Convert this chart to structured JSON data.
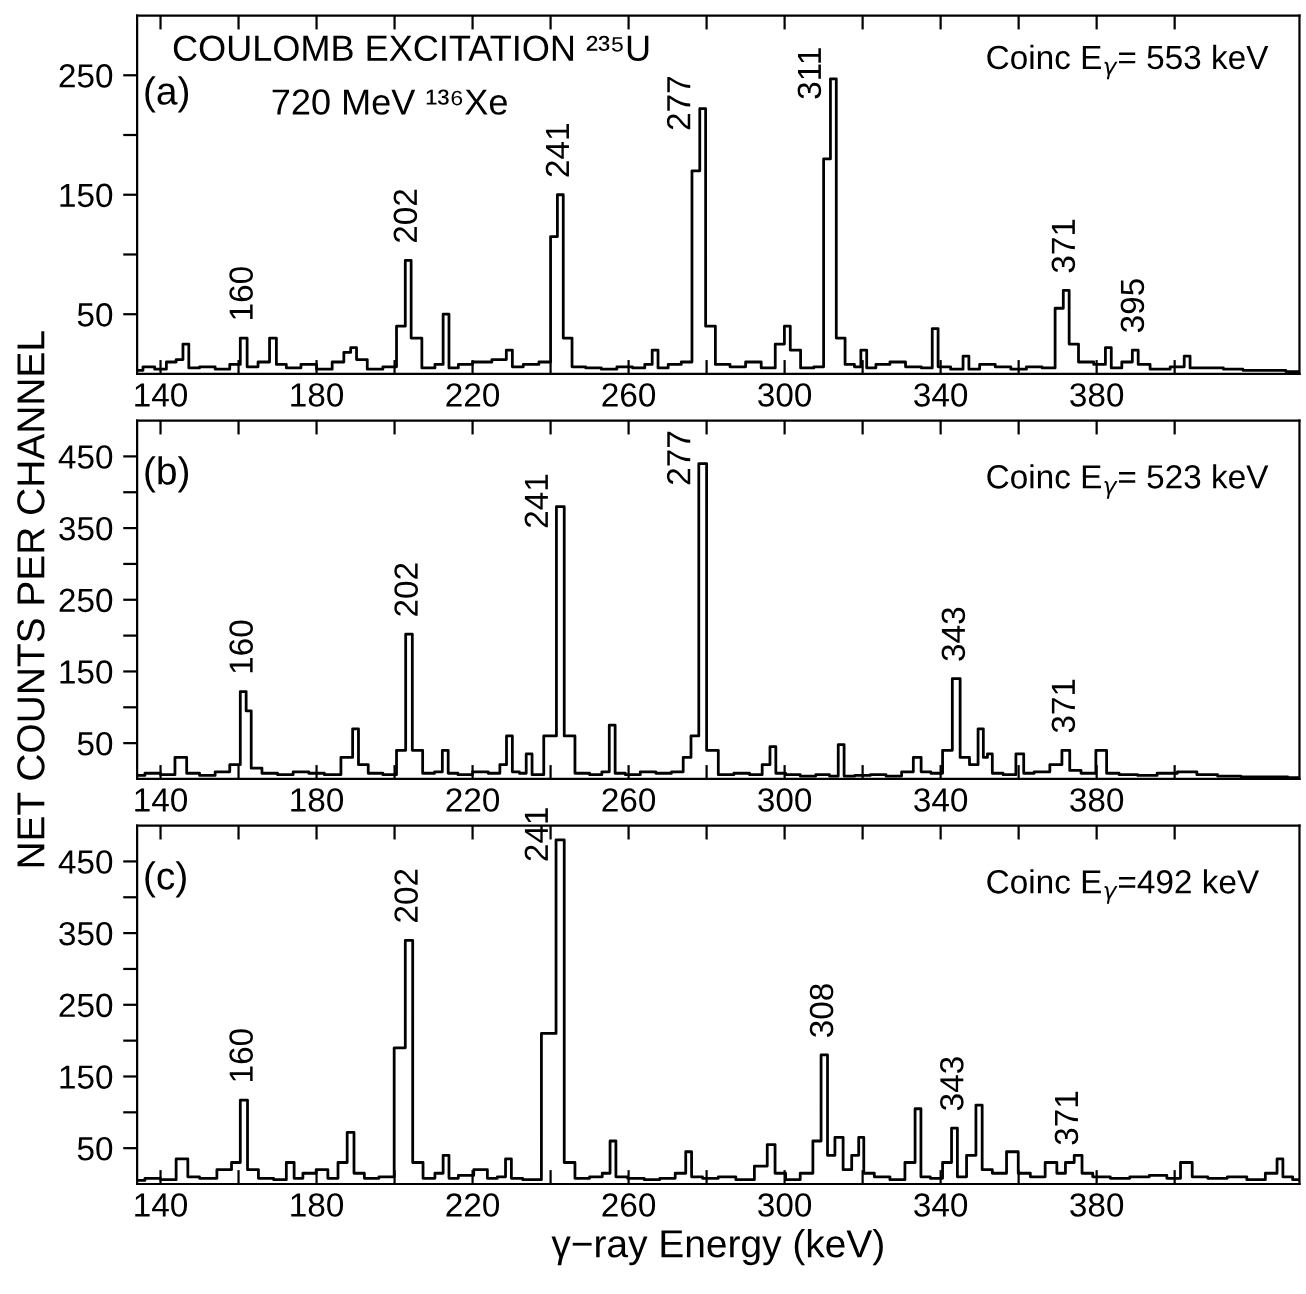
{
  "chart_data": [
    {
      "type": "step",
      "title": "COULOMB EXCITATION ²³⁵U",
      "subtitle": "720 MeV ¹³⁶Xe",
      "annotations": [
        "(a)",
        "Coinc E$_{γ}$= 553 keV",
        {
          "text": "160",
          "x": 161.4,
          "y": 30
        },
        {
          "text": "202",
          "x": 203.5,
          "y": 95
        },
        {
          "text": "241",
          "x": 242.5,
          "y": 150
        },
        {
          "text": "277",
          "x": 279,
          "y": 222
        },
        {
          "text": "311",
          "x": 312.5,
          "y": 247
        },
        {
          "text": "371",
          "x": 372.2,
          "y": 70
        },
        {
          "text": "395",
          "x": 389.9,
          "y": 20
        }
      ],
      "series": [
        {
          "color": "#000000",
          "x": [
            134,
            137,
            140,
            143,
            145,
            146.5,
            148,
            152,
            156,
            159.5,
            161.4,
            163,
            167,
            168.9,
            170.5,
            174,
            178,
            182,
            186,
            188,
            189.5,
            191,
            195,
            199,
            202,
            203.5,
            205,
            209,
            211.7,
            213.2,
            214.7,
            218,
            222,
            227.9,
            229.4,
            231,
            235,
            239,
            241,
            242.5,
            244,
            247,
            251,
            255,
            259,
            263,
            265.3,
            266.8,
            268.3,
            272,
            275,
            277.5,
            279,
            280.5,
            284,
            288,
            292,
            296,
            299.2,
            300.7,
            302.2,
            306,
            309,
            311,
            312.5,
            314,
            317,
            318.8,
            320.3,
            321.8,
            325,
            329,
            333,
            337.1,
            338.6,
            340.1,
            345,
            346.5,
            348,
            352,
            356,
            360,
            364,
            368,
            370.7,
            372.2,
            373.7,
            377,
            381.5,
            383,
            384.5,
            388.4,
            389.9,
            391.4,
            396,
            401.7,
            403.2,
            404.7,
            410,
            415,
            420,
            425,
            432
          ],
          "values": [
            3,
            6,
            4,
            10,
            12,
            25,
            5,
            6,
            4,
            8,
            30,
            6,
            10,
            30,
            8,
            5,
            8,
            4,
            10,
            18,
            22,
            12,
            4,
            6,
            40,
            95,
            30,
            5,
            8,
            50,
            5,
            8,
            10,
            12,
            20,
            6,
            8,
            10,
            115,
            150,
            30,
            6,
            5,
            4,
            6,
            5,
            8,
            20,
            5,
            8,
            10,
            170,
            222,
            40,
            8,
            6,
            10,
            5,
            25,
            40,
            20,
            5,
            6,
            180,
            247,
            30,
            8,
            6,
            20,
            5,
            8,
            10,
            6,
            5,
            38,
            6,
            4,
            15,
            4,
            8,
            6,
            4,
            6,
            5,
            55,
            70,
            25,
            10,
            8,
            22,
            5,
            10,
            20,
            8,
            4,
            6,
            15,
            5,
            5,
            4,
            3,
            3,
            2
          ]
        }
      ],
      "xlim": [
        134,
        432
      ],
      "ylim": [
        0,
        300
      ],
      "xticks": [
        140,
        {
          "value": 160,
          "label": null
        },
        180,
        {
          "value": 200,
          "label": null
        },
        220,
        {
          "value": 240,
          "label": null
        },
        260,
        {
          "value": 280,
          "label": null
        },
        300,
        {
          "value": 320,
          "label": null
        },
        340,
        {
          "value": 360,
          "label": null
        },
        380,
        {
          "value": 400,
          "label": null
        }
      ],
      "yticks": [
        50,
        {
          "value": 100,
          "label": null
        },
        150,
        {
          "value": 200,
          "label": null
        },
        250
      ],
      "grid": false,
      "line_style": "solid"
    },
    {
      "type": "step",
      "ylabel": "NET COUNTS PER CHANNEL",
      "annotations": [
        "(b)",
        "Coinc E$_{γ}$= 523 keV",
        {
          "text": "160",
          "x": 161.4,
          "y": 122
        },
        {
          "text": "202",
          "x": 203.7,
          "y": 202
        },
        {
          "text": "241",
          "x": 242.5,
          "y": 380
        },
        {
          "text": "277",
          "x": 279,
          "y": 440
        },
        {
          "text": "343",
          "x": 344,
          "y": 140
        },
        {
          "text": "371",
          "x": 372.2,
          "y": 40
        }
      ],
      "series": [
        {
          "color": "#000000",
          "x": [
            134,
            138,
            142,
            145.4,
            148,
            152,
            156,
            159.5,
            161.4,
            162.5,
            164,
            168,
            172,
            176,
            180,
            184,
            188.5,
            190,
            191.5,
            195,
            199,
            202,
            203.7,
            205.4,
            209,
            211.5,
            213,
            214.5,
            218,
            222,
            226,
            228,
            229.4,
            231,
            233,
            234.5,
            236,
            240.5,
            242.5,
            244.5,
            248,
            252,
            254.3,
            255.8,
            257.3,
            261,
            265,
            269,
            273,
            275,
            277,
            279,
            281,
            285,
            289,
            293,
            295.5,
            297,
            298.5,
            302,
            306,
            310,
            313,
            314.5,
            316,
            320,
            324,
            328,
            332,
            334,
            336,
            339,
            342,
            344,
            346,
            348.8,
            350.4,
            351.5,
            352.5,
            354,
            358,
            360.6,
            362,
            366,
            370,
            372.2,
            374,
            378,
            381.6,
            383.5,
            388,
            393,
            398,
            403.4,
            408,
            414,
            420,
            426,
            432
          ],
          "values": [
            5,
            8,
            6,
            30,
            8,
            5,
            10,
            20,
            122,
            95,
            15,
            8,
            6,
            10,
            8,
            6,
            30,
            70,
            20,
            8,
            6,
            40,
            202,
            40,
            8,
            10,
            40,
            8,
            6,
            10,
            8,
            20,
            60,
            10,
            8,
            35,
            6,
            60,
            380,
            60,
            8,
            6,
            10,
            75,
            8,
            6,
            10,
            8,
            10,
            30,
            60,
            440,
            40,
            6,
            8,
            6,
            20,
            45,
            8,
            6,
            4,
            6,
            4,
            48,
            4,
            5,
            6,
            4,
            10,
            30,
            10,
            8,
            40,
            140,
            30,
            20,
            70,
            30,
            35,
            8,
            6,
            35,
            8,
            10,
            20,
            40,
            12,
            8,
            40,
            8,
            6,
            5,
            8,
            10,
            6,
            4,
            3,
            3,
            2
          ]
        }
      ],
      "xlim": [
        134,
        432
      ],
      "ylim": [
        0,
        500
      ],
      "xticks": [
        140,
        {
          "value": 160,
          "label": null
        },
        180,
        {
          "value": 200,
          "label": null
        },
        220,
        {
          "value": 240,
          "label": null
        },
        260,
        {
          "value": 280,
          "label": null
        },
        300,
        {
          "value": 320,
          "label": null
        },
        340,
        {
          "value": 360,
          "label": null
        },
        380,
        {
          "value": 400,
          "label": null
        }
      ],
      "yticks": [
        50,
        {
          "value": 100,
          "label": null
        },
        150,
        {
          "value": 200,
          "label": null
        },
        250,
        {
          "value": 300,
          "label": null
        },
        350,
        {
          "value": 400,
          "label": null
        },
        450
      ],
      "grid": false,
      "line_style": "solid"
    },
    {
      "type": "step",
      "xlabel": "γ−ray Energy (keV)",
      "annotations": [
        "(c)",
        "Coinc E$_{γ}$=492 keV",
        {
          "text": "160",
          "x": 161.4,
          "y": 117
        },
        {
          "text": "202",
          "x": 203.7,
          "y": 340
        },
        {
          "text": "241",
          "x": 242.5,
          "y": 480
        },
        {
          "text": "308",
          "x": 310.2,
          "y": 180
        },
        {
          "text": "343",
          "x": 343.6,
          "y": 78
        },
        {
          "text": "371",
          "x": 373,
          "y": 30
        }
      ],
      "series": [
        {
          "color": "#000000",
          "x": [
            134,
            138,
            142,
            146,
            148,
            152,
            156.9,
            159.5,
            161.4,
            163.2,
            167,
            171,
            173.5,
            175,
            178,
            181.8,
            184,
            187,
            188.7,
            190.5,
            194,
            198,
            201.8,
            203.7,
            205.6,
            209,
            211.7,
            213.2,
            214.7,
            218,
            222.6,
            225,
            227.7,
            229.2,
            230.7,
            235,
            240.3,
            242.5,
            244.5,
            248,
            252,
            254.5,
            256,
            257.5,
            262,
            266,
            270,
            273.9,
            275.4,
            276.9,
            281,
            285,
            290,
            294.5,
            296.6,
            298.5,
            302,
            306,
            308.5,
            310.2,
            311.8,
            314,
            316,
            318.4,
            319.6,
            321,
            325,
            329,
            332.7,
            334.2,
            335.7,
            339,
            342,
            343.6,
            345,
            348.3,
            349.8,
            351.5,
            355,
            358.8,
            361,
            365,
            368.6,
            371,
            373,
            375.5,
            377,
            381,
            386,
            391,
            396,
            400,
            403,
            406,
            411,
            416,
            421,
            425.5,
            427,
            428.5,
            432
          ],
          "values": [
            5,
            8,
            6,
            35,
            10,
            8,
            20,
            30,
            117,
            20,
            8,
            6,
            30,
            8,
            15,
            20,
            8,
            30,
            72,
            15,
            8,
            10,
            190,
            340,
            30,
            8,
            15,
            40,
            8,
            12,
            20,
            8,
            10,
            35,
            8,
            6,
            210,
            480,
            30,
            8,
            10,
            15,
            60,
            10,
            8,
            6,
            8,
            15,
            45,
            10,
            8,
            10,
            6,
            25,
            55,
            15,
            6,
            15,
            60,
            180,
            40,
            65,
            20,
            40,
            65,
            15,
            10,
            6,
            30,
            105,
            10,
            8,
            30,
            78,
            10,
            40,
            110,
            20,
            15,
            45,
            15,
            10,
            30,
            15,
            30,
            40,
            15,
            10,
            8,
            10,
            12,
            8,
            30,
            10,
            8,
            10,
            6,
            15,
            35,
            10,
            6
          ]
        }
      ],
      "xlim": [
        134,
        432
      ],
      "ylim": [
        0,
        500
      ],
      "xticks": [
        140,
        {
          "value": 160,
          "label": null
        },
        180,
        {
          "value": 200,
          "label": null
        },
        220,
        {
          "value": 240,
          "label": null
        },
        260,
        {
          "value": 280,
          "label": null
        },
        300,
        {
          "value": 320,
          "label": null
        },
        340,
        {
          "value": 360,
          "label": null
        },
        380,
        {
          "value": 400,
          "label": null
        }
      ],
      "yticks": [
        50,
        {
          "value": 100,
          "label": null
        },
        150,
        {
          "value": 200,
          "label": null
        },
        250,
        {
          "value": 300,
          "label": null
        },
        350,
        {
          "value": 400,
          "label": null
        },
        450
      ],
      "grid": false,
      "line_style": "solid"
    }
  ]
}
